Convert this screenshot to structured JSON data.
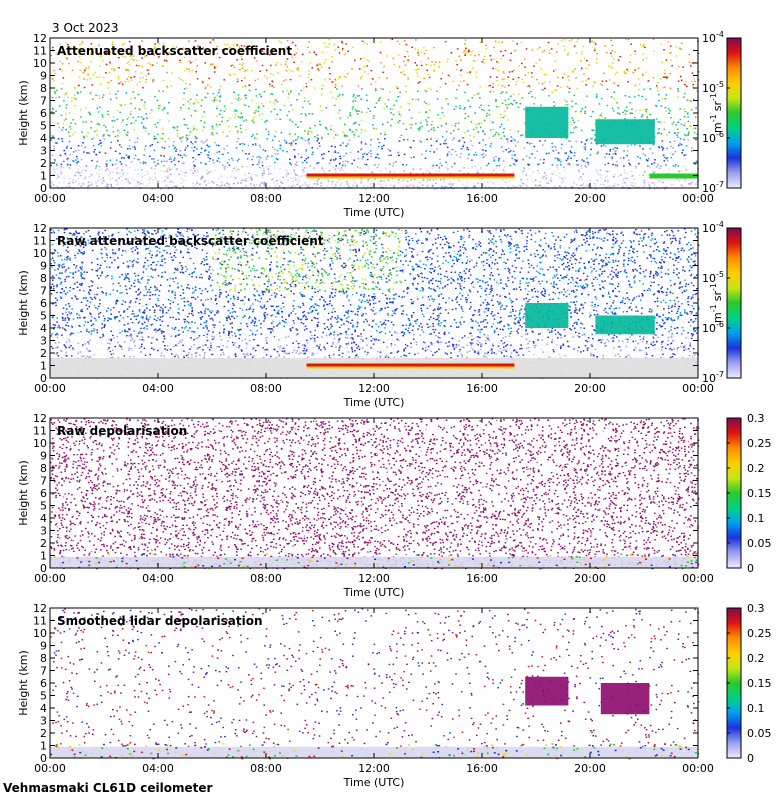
{
  "header": {
    "date": "3 Oct 2023"
  },
  "footer": {
    "site": "Vehmasmaki CL61D ceilometer"
  },
  "chart_data": [
    {
      "type": "heatmap",
      "title": "Attenuated backscatter coefficient",
      "xlabel": "Time (UTC)",
      "ylabel": "Height (km)",
      "x_ticks": [
        "00:00",
        "04:00",
        "08:00",
        "12:00",
        "16:00",
        "20:00",
        "00:00"
      ],
      "y_ticks": [
        "0",
        "1",
        "2",
        "3",
        "4",
        "5",
        "6",
        "7",
        "8",
        "9",
        "10",
        "11",
        "12"
      ],
      "xlim_hours": [
        0,
        24
      ],
      "ylim_km": [
        0,
        12
      ],
      "colorbar": {
        "scale": "log",
        "label": "m-1 sr-1",
        "label_base": "m",
        "label_base_exp": "-1",
        "label_unit": "sr",
        "label_unit_exp": "-1",
        "ticks": [
          {
            "base": "10",
            "exp": "-4"
          },
          {
            "base": "10",
            "exp": "-5"
          },
          {
            "base": "10",
            "exp": "-6"
          },
          {
            "base": "10",
            "exp": "-7"
          }
        ],
        "range": [
          1e-07,
          0.0001
        ]
      },
      "features": [
        {
          "kind": "cloud_base",
          "hours": [
            9.5,
            17.2
          ],
          "height_km": 1.0
        },
        {
          "kind": "elevated_layer",
          "hours": [
            17.6,
            19.2
          ],
          "height_km": [
            4.0,
            6.5
          ]
        },
        {
          "kind": "elevated_layer",
          "hours": [
            20.2,
            22.4
          ],
          "height_km": [
            3.5,
            5.5
          ]
        },
        {
          "kind": "low_layer",
          "hours": [
            22.2,
            24
          ],
          "height_km": 1.0
        }
      ]
    },
    {
      "type": "heatmap",
      "title": "Raw attenuated backscatter coefficient",
      "xlabel": "Time (UTC)",
      "ylabel": "Height (km)",
      "x_ticks": [
        "00:00",
        "04:00",
        "08:00",
        "12:00",
        "16:00",
        "20:00",
        "00:00"
      ],
      "y_ticks": [
        "0",
        "1",
        "2",
        "3",
        "4",
        "5",
        "6",
        "7",
        "8",
        "9",
        "10",
        "11",
        "12"
      ],
      "xlim_hours": [
        0,
        24
      ],
      "ylim_km": [
        0,
        12
      ],
      "colorbar": {
        "scale": "log",
        "label": "m-1 sr-1",
        "label_base": "m",
        "label_base_exp": "-1",
        "label_unit": "sr",
        "label_unit_exp": "-1",
        "ticks": [
          {
            "base": "10",
            "exp": "-4"
          },
          {
            "base": "10",
            "exp": "-5"
          },
          {
            "base": "10",
            "exp": "-6"
          },
          {
            "base": "10",
            "exp": "-7"
          }
        ],
        "range": [
          1e-07,
          0.0001
        ]
      },
      "features": [
        {
          "kind": "cloud_base",
          "hours": [
            9.5,
            17.2
          ],
          "height_km": 1.0
        },
        {
          "kind": "elevated_layer",
          "hours": [
            17.6,
            19.2
          ],
          "height_km": [
            4.0,
            6.0
          ]
        },
        {
          "kind": "elevated_layer",
          "hours": [
            20.2,
            22.4
          ],
          "height_km": [
            3.5,
            5.0
          ]
        }
      ]
    },
    {
      "type": "heatmap",
      "title": "Raw depolarisation",
      "xlabel": "Time (UTC)",
      "ylabel": "Height (km)",
      "x_ticks": [
        "00:00",
        "04:00",
        "08:00",
        "12:00",
        "16:00",
        "20:00",
        "00:00"
      ],
      "y_ticks": [
        "0",
        "1",
        "2",
        "3",
        "4",
        "5",
        "6",
        "7",
        "8",
        "9",
        "10",
        "11",
        "12"
      ],
      "xlim_hours": [
        0,
        24
      ],
      "ylim_km": [
        0,
        12
      ],
      "colorbar": {
        "scale": "linear",
        "ticks": [
          "0.3",
          "0.25",
          "0.2",
          "0.15",
          "0.1",
          "0.05",
          "0"
        ],
        "range": [
          0,
          0.3
        ]
      }
    },
    {
      "type": "heatmap",
      "title": "Smoothed lidar depolarisation",
      "xlabel": "Time (UTC)",
      "ylabel": "Height (km)",
      "x_ticks": [
        "00:00",
        "04:00",
        "08:00",
        "12:00",
        "16:00",
        "20:00",
        "00:00"
      ],
      "y_ticks": [
        "0",
        "1",
        "2",
        "3",
        "4",
        "5",
        "6",
        "7",
        "8",
        "9",
        "10",
        "11",
        "12"
      ],
      "xlim_hours": [
        0,
        24
      ],
      "ylim_km": [
        0,
        12
      ],
      "colorbar": {
        "scale": "linear",
        "ticks": [
          "0.3",
          "0.25",
          "0.2",
          "0.15",
          "0.1",
          "0.05",
          "0"
        ],
        "range": [
          0,
          0.3
        ]
      },
      "features": [
        {
          "kind": "elevated_layer",
          "hours": [
            17.6,
            19.2
          ],
          "height_km": [
            4.2,
            6.5
          ]
        },
        {
          "kind": "elevated_layer",
          "hours": [
            20.4,
            22.2
          ],
          "height_km": [
            3.5,
            6.0
          ]
        }
      ]
    }
  ],
  "colors": {
    "frame": "#000000",
    "background": "#ffffff",
    "no_signal_grey": "#dcdcdc",
    "depol_purple": "#8b0a6e",
    "colormap": [
      "#ececff",
      "#9aa0ee",
      "#1e32dc",
      "#00a0f0",
      "#00d282",
      "#2cc82c",
      "#c8e614",
      "#ffcc00",
      "#ff8c00",
      "#dc1414",
      "#7d0a50"
    ]
  }
}
